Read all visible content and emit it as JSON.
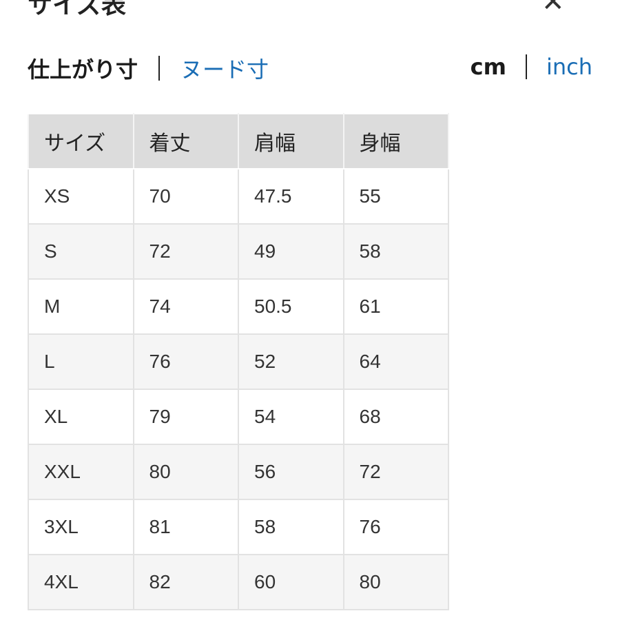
{
  "header": {
    "title": "サイズ表",
    "close_icon": "close-icon"
  },
  "tabs": {
    "finished": "仕上がり寸",
    "nude": "ヌード寸"
  },
  "units": {
    "cm": "cm",
    "inch": "inch"
  },
  "colors": {
    "link": "#1a6db5",
    "header_bg": "#dcdcdc",
    "row_alt": "#f5f5f5"
  },
  "table": {
    "headers": [
      "サイズ",
      "着丈",
      "肩幅",
      "身幅"
    ],
    "rows": [
      [
        "XS",
        "70",
        "47.5",
        "55"
      ],
      [
        "S",
        "72",
        "49",
        "58"
      ],
      [
        "M",
        "74",
        "50.5",
        "61"
      ],
      [
        "L",
        "76",
        "52",
        "64"
      ],
      [
        "XL",
        "79",
        "54",
        "68"
      ],
      [
        "XXL",
        "80",
        "56",
        "72"
      ],
      [
        "3XL",
        "81",
        "58",
        "76"
      ],
      [
        "4XL",
        "82",
        "60",
        "80"
      ]
    ]
  }
}
